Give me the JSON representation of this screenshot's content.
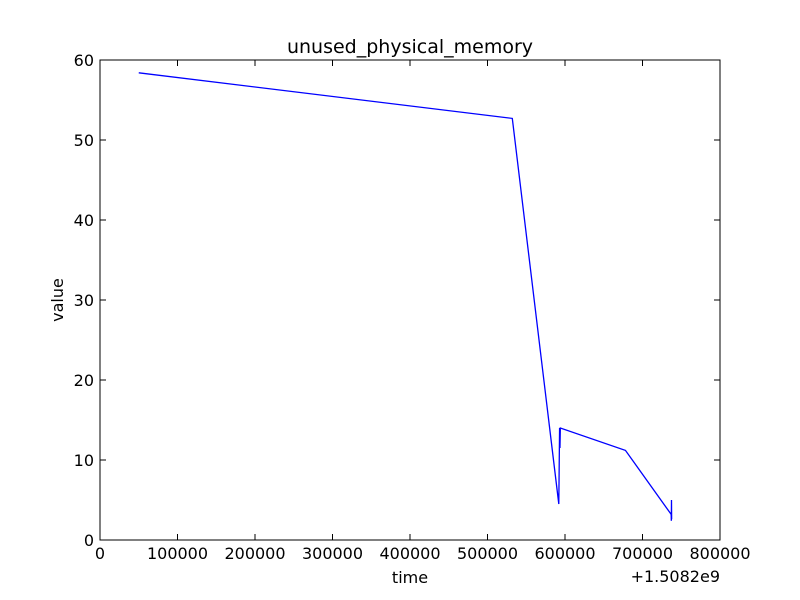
{
  "chart_data": {
    "type": "line",
    "title": "unused_physical_memory",
    "xlabel": "time",
    "ylabel": "value",
    "x_offset_label": "+1.5082e9",
    "xlim": [
      0,
      800000
    ],
    "ylim": [
      0,
      60
    ],
    "x_ticks": [
      0,
      100000,
      200000,
      300000,
      400000,
      500000,
      600000,
      700000,
      800000
    ],
    "x_tick_labels": [
      "0",
      "100000",
      "200000",
      "300000",
      "400000",
      "500000",
      "600000",
      "700000",
      "800000"
    ],
    "y_ticks": [
      0,
      10,
      20,
      30,
      40,
      50,
      60
    ],
    "y_tick_labels": [
      "0",
      "10",
      "20",
      "30",
      "40",
      "50",
      "60"
    ],
    "grid": false,
    "line_color": "#0000ff",
    "series": [
      {
        "name": "unused_physical_memory",
        "x": [
          50000,
          532000,
          592000,
          593000,
          593500,
          594000,
          678000,
          737000,
          737200,
          737400,
          737600
        ],
        "y": [
          58.4,
          52.7,
          4.5,
          14.0,
          11.5,
          14.0,
          11.2,
          3.2,
          2.4,
          5.0,
          2.6
        ]
      }
    ]
  }
}
